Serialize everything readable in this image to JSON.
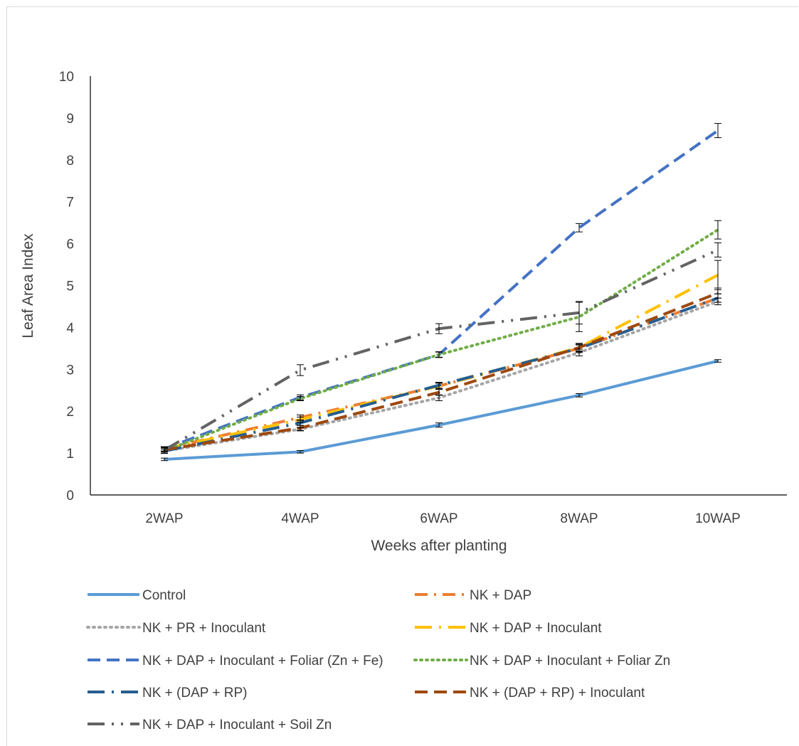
{
  "chart_data": {
    "type": "line",
    "xlabel": "Weeks after planting",
    "ylabel": "Leaf Area Index",
    "categories": [
      "2WAP",
      "4WAP",
      "6WAP",
      "8WAP",
      "10WAP"
    ],
    "ylim": [
      0,
      10
    ],
    "yticks": [
      "0",
      "1",
      "2",
      "3",
      "4",
      "5",
      "6",
      "7",
      "8",
      "9",
      "10"
    ],
    "grid": false,
    "legend_position": "bottom",
    "series": [
      {
        "name": "Control",
        "values": [
          0.85,
          1.03,
          1.67,
          2.38,
          3.2
        ],
        "errors": [
          0.03,
          0.03,
          0.05,
          0.04,
          0.03
        ],
        "color": "#5B9BD5",
        "dash": "solid"
      },
      {
        "name": "NK + DAP",
        "values": [
          1.1,
          1.85,
          2.6,
          3.5,
          4.7
        ],
        "errors": [
          0.05,
          0.06,
          0.07,
          0.1,
          0.1
        ],
        "color": "#ED7D31",
        "dash": "dashdot"
      },
      {
        "name": "NK + PR + Inoculant",
        "values": [
          1.05,
          1.57,
          2.32,
          3.4,
          4.62
        ],
        "errors": [
          0.05,
          0.04,
          0.07,
          0.08,
          0.08
        ],
        "color": "#A5A5A5",
        "dash": "dot"
      },
      {
        "name": "NK + DAP + Inoculant",
        "values": [
          1.1,
          1.8,
          2.6,
          3.52,
          5.25
        ],
        "errors": [
          0.05,
          0.06,
          0.07,
          0.1,
          0.35
        ],
        "color": "#FFC000",
        "dash": "longdashdot"
      },
      {
        "name": "NK + DAP + Inoculant + Foliar (Zn + Fe)",
        "values": [
          1.1,
          2.33,
          3.35,
          6.38,
          8.7
        ],
        "errors": [
          0.05,
          0.06,
          0.07,
          0.1,
          0.17
        ],
        "color": "#4472C4",
        "dash": "dash"
      },
      {
        "name": "NK + DAP + Inoculant + Foliar Zn",
        "values": [
          1.05,
          2.3,
          3.35,
          4.25,
          6.33
        ],
        "errors": [
          0.05,
          0.05,
          0.06,
          0.35,
          0.22
        ],
        "color": "#70AD47",
        "dash": "dot"
      },
      {
        "name": "NK + (DAP + RP)",
        "values": [
          1.05,
          1.72,
          2.62,
          3.5,
          4.7
        ],
        "errors": [
          0.05,
          0.06,
          0.07,
          0.08,
          0.1
        ],
        "color": "#255E91",
        "dash": "longdashdot"
      },
      {
        "name": "NK + (DAP + RP) + Inoculant",
        "values": [
          1.08,
          1.6,
          2.45,
          3.52,
          4.82
        ],
        "errors": [
          0.05,
          0.06,
          0.07,
          0.08,
          0.12
        ],
        "color": "#9E480E",
        "dash": "dash"
      },
      {
        "name": "NK + DAP + Inoculant + Soil Zn",
        "values": [
          1.07,
          2.98,
          3.97,
          4.35,
          5.85
        ],
        "errors": [
          0.08,
          0.13,
          0.12,
          0.27,
          0.17
        ],
        "color": "#636363",
        "dash": "longdashdotdot"
      }
    ]
  }
}
